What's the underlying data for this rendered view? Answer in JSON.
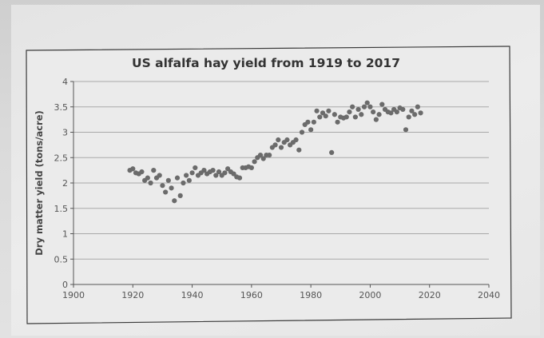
{
  "chart_data": {
    "type": "scatter",
    "title": "US alfalfa hay yield from 1919 to 2017",
    "xlabel": "",
    "ylabel": "Dry matter yield (tons/acre)",
    "xlim": [
      1900,
      2040
    ],
    "ylim": [
      0,
      4
    ],
    "x_ticks": [
      1900,
      1920,
      1940,
      1960,
      1980,
      2000,
      2020,
      2040
    ],
    "y_ticks": [
      0,
      0.5,
      1,
      1.5,
      2,
      2.5,
      3,
      3.5,
      4
    ],
    "grid": "horizontal",
    "marker_color": "#6b6b6b",
    "series": [
      {
        "x": [
          1919,
          1920,
          1921,
          1922,
          1923,
          1924,
          1925,
          1926,
          1927,
          1928,
          1929,
          1930,
          1931,
          1932,
          1933,
          1934,
          1935,
          1936,
          1937,
          1938,
          1939,
          1940,
          1941,
          1942,
          1943,
          1944,
          1945,
          1946,
          1947,
          1948,
          1949,
          1950,
          1951,
          1952,
          1953,
          1954,
          1955,
          1956,
          1957,
          1958,
          1959,
          1960,
          1961,
          1962,
          1963,
          1964,
          1965,
          1966,
          1967,
          1968,
          1969,
          1970,
          1971,
          1972,
          1973,
          1974,
          1975,
          1976,
          1977,
          1978,
          1979,
          1980,
          1981,
          1982,
          1983,
          1984,
          1985,
          1986,
          1987,
          1988,
          1989,
          1990,
          1991,
          1992,
          1993,
          1994,
          1995,
          1996,
          1997,
          1998,
          1999,
          2000,
          2001,
          2002,
          2003,
          2004,
          2005,
          2006,
          2007,
          2008,
          2009,
          2010,
          2011,
          2012,
          2013,
          2014,
          2015,
          2016,
          2017
        ],
        "y": [
          2.25,
          2.28,
          2.2,
          2.18,
          2.22,
          2.05,
          2.1,
          2.0,
          2.25,
          2.1,
          2.15,
          1.95,
          1.82,
          2.05,
          1.9,
          1.65,
          2.1,
          1.75,
          2.0,
          2.15,
          2.05,
          2.2,
          2.3,
          2.15,
          2.2,
          2.25,
          2.18,
          2.22,
          2.25,
          2.15,
          2.22,
          2.15,
          2.2,
          2.28,
          2.22,
          2.18,
          2.12,
          2.1,
          2.3,
          2.3,
          2.32,
          2.3,
          2.42,
          2.5,
          2.55,
          2.48,
          2.55,
          2.55,
          2.7,
          2.75,
          2.85,
          2.7,
          2.8,
          2.85,
          2.75,
          2.8,
          2.85,
          2.65,
          3.0,
          3.15,
          3.2,
          3.05,
          3.2,
          3.42,
          3.3,
          3.38,
          3.32,
          3.42,
          2.6,
          3.35,
          3.2,
          3.3,
          3.28,
          3.3,
          3.4,
          3.5,
          3.3,
          3.45,
          3.35,
          3.5,
          3.58,
          3.5,
          3.4,
          3.25,
          3.35,
          3.55,
          3.45,
          3.4,
          3.38,
          3.45,
          3.4,
          3.48,
          3.45,
          3.05,
          3.3,
          3.42,
          3.35,
          3.5,
          3.38
        ]
      }
    ]
  }
}
